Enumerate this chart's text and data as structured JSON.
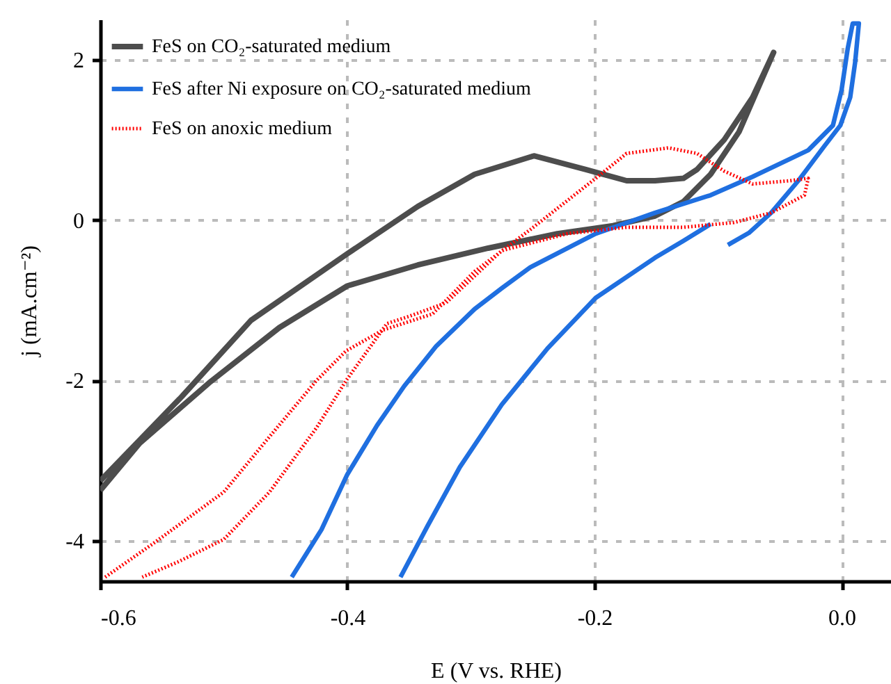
{
  "chart_data": {
    "type": "line",
    "xlabel": "E (V vs. RHE)",
    "ylabel": "j (mA.cm⁻²)",
    "xlim": [
      -0.6,
      0.04
    ],
    "xticks": [
      -0.6,
      -0.4,
      -0.2,
      {
        "value": 0,
        "label": "0.0"
      }
    ],
    "ylim": [
      -4.5,
      2.5
    ],
    "yticks": [
      -4,
      -2,
      0,
      2
    ],
    "grid": true,
    "legend": "top left",
    "series": [
      {
        "name": "FeS on CO₂-saturated medium",
        "color": "#4d4d4d",
        "line_style": "solid",
        "x": [
          -0.6,
          -0.534,
          -0.478,
          -0.4,
          -0.343,
          -0.297,
          -0.249,
          -0.207,
          -0.174,
          -0.151,
          -0.128,
          -0.117,
          -0.095,
          -0.072,
          -0.055,
          -0.083,
          -0.106,
          -0.128,
          -0.151,
          -0.185,
          -0.23,
          -0.286,
          -0.343,
          -0.4,
          -0.455,
          -0.512,
          -0.568,
          -0.6
        ],
        "values": [
          -3.25,
          -2.2,
          -1.25,
          -0.42,
          0.17,
          0.57,
          0.8,
          0.63,
          0.49,
          0.49,
          0.52,
          0.63,
          1.0,
          1.53,
          2.09,
          1.1,
          0.57,
          0.23,
          0.05,
          -0.07,
          -0.17,
          -0.35,
          -0.56,
          -0.82,
          -1.34,
          -2.03,
          -2.78,
          -3.37
        ]
      },
      {
        "name": "FeS after Ni exposure on CO₂-saturated medium",
        "color": "#1f6fe0",
        "line_style": "solid",
        "x": [
          -0.445,
          -0.421,
          -0.4,
          -0.376,
          -0.354,
          -0.328,
          -0.297,
          -0.275,
          -0.252,
          -0.199,
          -0.151,
          -0.106,
          -0.072,
          -0.027,
          -0.007,
          0.0,
          0.005,
          0.009,
          0.014,
          0.011,
          0.007,
          -0.001,
          -0.014,
          -0.035,
          -0.057,
          -0.075,
          -0.092,
          null,
          -0.106,
          -0.128,
          -0.151,
          -0.199,
          -0.238,
          -0.275,
          -0.309,
          -0.335,
          -0.357
        ],
        "values": [
          -4.45,
          -3.86,
          -3.17,
          -2.56,
          -2.07,
          -1.57,
          -1.11,
          -0.85,
          -0.59,
          -0.17,
          0.09,
          0.31,
          0.54,
          0.87,
          1.18,
          1.62,
          2.14,
          2.45,
          2.45,
          1.97,
          1.53,
          1.18,
          0.92,
          0.49,
          0.09,
          -0.16,
          -0.31,
          null,
          -0.05,
          -0.26,
          -0.47,
          -0.97,
          -1.6,
          -2.3,
          -3.08,
          -3.81,
          -4.45
        ]
      },
      {
        "name": "FeS on anoxic medium",
        "color": "#ff0000",
        "line_style": "dotted",
        "x": [
          -0.596,
          -0.557,
          -0.5,
          -0.463,
          -0.425,
          -0.401,
          -0.371,
          -0.331,
          -0.297,
          -0.252,
          -0.199,
          -0.174,
          -0.14,
          -0.117,
          -0.095,
          -0.072,
          -0.042,
          -0.027,
          -0.03,
          -0.057,
          -0.087,
          -0.128,
          -0.174,
          -0.222,
          -0.275,
          -0.32,
          -0.35,
          -0.368,
          -0.401,
          -0.425,
          -0.463,
          -0.5,
          -0.537,
          -0.566
        ],
        "values": [
          -4.45,
          -4.03,
          -3.39,
          -2.7,
          -2.0,
          -1.63,
          -1.37,
          -1.17,
          -0.64,
          -0.12,
          0.52,
          0.83,
          0.9,
          0.83,
          0.61,
          0.45,
          0.49,
          0.52,
          0.31,
          0.09,
          -0.03,
          -0.09,
          -0.09,
          -0.17,
          -0.38,
          -1.03,
          -1.2,
          -1.29,
          -2.0,
          -2.59,
          -3.39,
          -3.98,
          -4.26,
          -4.45
        ]
      }
    ]
  }
}
